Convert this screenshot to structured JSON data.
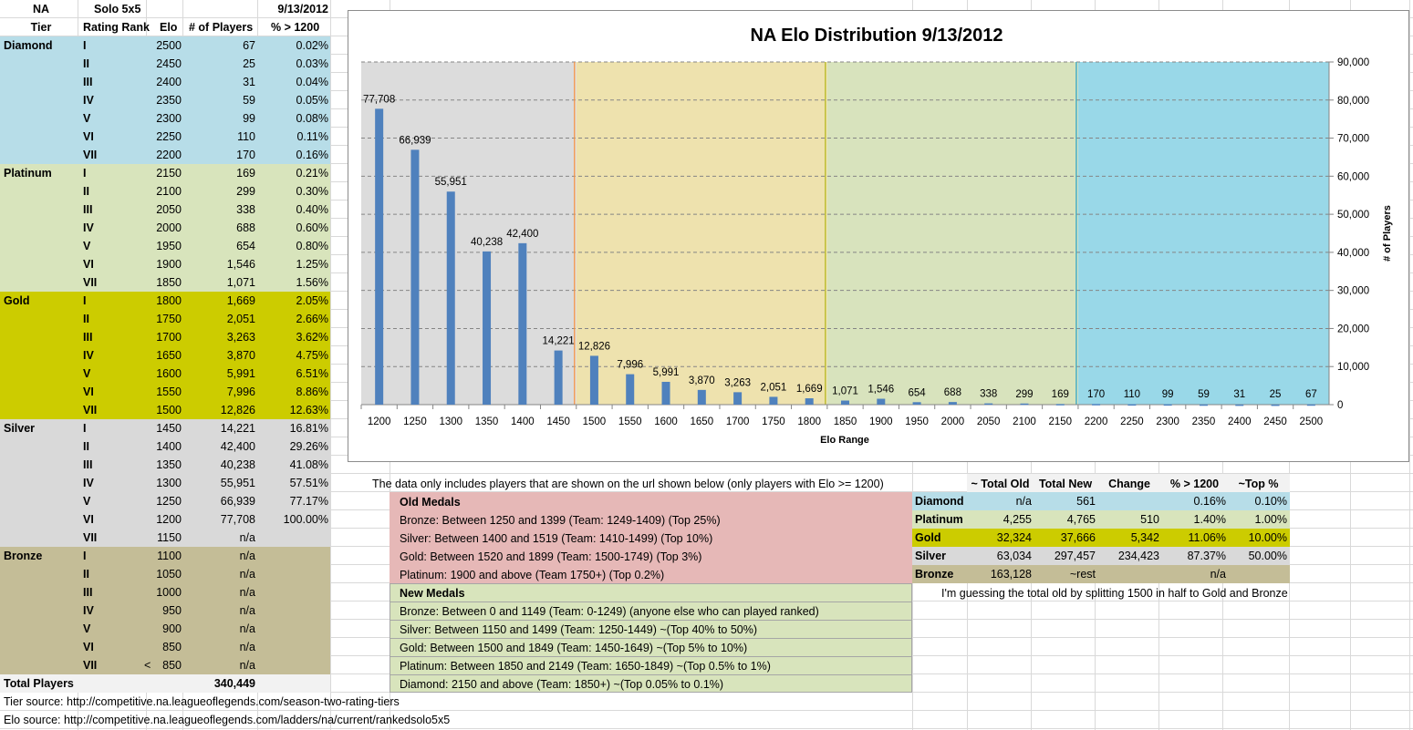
{
  "left_table": {
    "header": {
      "region": "NA",
      "queue": "Solo 5x5",
      "date": "9/13/2012",
      "col_tier": "Tier",
      "col_rank": "Rating Rank",
      "col_elo": "Elo",
      "col_players": "# of Players",
      "col_pct": "% > 1200"
    },
    "tiers": [
      {
        "name": "Diamond",
        "color": "#b7dde8",
        "rows": [
          {
            "rank": "I",
            "elo": "2500",
            "players": "67",
            "pct": "0.02%"
          },
          {
            "rank": "II",
            "elo": "2450",
            "players": "25",
            "pct": "0.03%"
          },
          {
            "rank": "III",
            "elo": "2400",
            "players": "31",
            "pct": "0.04%"
          },
          {
            "rank": "IV",
            "elo": "2350",
            "players": "59",
            "pct": "0.05%"
          },
          {
            "rank": "V",
            "elo": "2300",
            "players": "99",
            "pct": "0.08%"
          },
          {
            "rank": "VI",
            "elo": "2250",
            "players": "110",
            "pct": "0.11%"
          },
          {
            "rank": "VII",
            "elo": "2200",
            "players": "170",
            "pct": "0.16%"
          }
        ]
      },
      {
        "name": "Platinum",
        "color": "#d8e4bc",
        "rows": [
          {
            "rank": "I",
            "elo": "2150",
            "players": "169",
            "pct": "0.21%"
          },
          {
            "rank": "II",
            "elo": "2100",
            "players": "299",
            "pct": "0.30%"
          },
          {
            "rank": "III",
            "elo": "2050",
            "players": "338",
            "pct": "0.40%"
          },
          {
            "rank": "IV",
            "elo": "2000",
            "players": "688",
            "pct": "0.60%"
          },
          {
            "rank": "V",
            "elo": "1950",
            "players": "654",
            "pct": "0.80%"
          },
          {
            "rank": "VI",
            "elo": "1900",
            "players": "1,546",
            "pct": "1.25%"
          },
          {
            "rank": "VII",
            "elo": "1850",
            "players": "1,071",
            "pct": "1.56%"
          }
        ]
      },
      {
        "name": "Gold",
        "color": "#cccc00",
        "rows": [
          {
            "rank": "I",
            "elo": "1800",
            "players": "1,669",
            "pct": "2.05%"
          },
          {
            "rank": "II",
            "elo": "1750",
            "players": "2,051",
            "pct": "2.66%"
          },
          {
            "rank": "III",
            "elo": "1700",
            "players": "3,263",
            "pct": "3.62%"
          },
          {
            "rank": "IV",
            "elo": "1650",
            "players": "3,870",
            "pct": "4.75%"
          },
          {
            "rank": "V",
            "elo": "1600",
            "players": "5,991",
            "pct": "6.51%"
          },
          {
            "rank": "VI",
            "elo": "1550",
            "players": "7,996",
            "pct": "8.86%"
          },
          {
            "rank": "VII",
            "elo": "1500",
            "players": "12,826",
            "pct": "12.63%"
          }
        ]
      },
      {
        "name": "Silver",
        "color": "#d9d9d9",
        "rows": [
          {
            "rank": "I",
            "elo": "1450",
            "players": "14,221",
            "pct": "16.81%"
          },
          {
            "rank": "II",
            "elo": "1400",
            "players": "42,400",
            "pct": "29.26%"
          },
          {
            "rank": "III",
            "elo": "1350",
            "players": "40,238",
            "pct": "41.08%"
          },
          {
            "rank": "IV",
            "elo": "1300",
            "players": "55,951",
            "pct": "57.51%"
          },
          {
            "rank": "V",
            "elo": "1250",
            "players": "66,939",
            "pct": "77.17%"
          },
          {
            "rank": "VI",
            "elo": "1200",
            "players": "77,708",
            "pct": "100.00%"
          },
          {
            "rank": "VII",
            "elo": "1150",
            "players": "n/a",
            "pct": ""
          }
        ]
      },
      {
        "name": "Bronze",
        "color": "#c4bd97",
        "rows": [
          {
            "rank": "I",
            "elo": "1100",
            "players": "n/a",
            "pct": ""
          },
          {
            "rank": "II",
            "elo": "1050",
            "players": "n/a",
            "pct": ""
          },
          {
            "rank": "III",
            "elo": "1000",
            "players": "n/a",
            "pct": ""
          },
          {
            "rank": "IV",
            "elo": "950",
            "players": "n/a",
            "pct": ""
          },
          {
            "rank": "V",
            "elo": "900",
            "players": "n/a",
            "pct": ""
          },
          {
            "rank": "VI",
            "elo": "850",
            "players": "n/a",
            "pct": ""
          },
          {
            "rank": "VII",
            "prefix": "<",
            "elo": "850",
            "players": "n/a",
            "pct": ""
          }
        ]
      }
    ],
    "total_label": "Total Players",
    "total_value": "340,449",
    "tier_source": "Tier source: http://competitive.na.leagueoflegends.com/season-two-rating-tiers",
    "elo_source": "Elo source: http://competitive.na.leagueoflegends.com/ladders/na/current/rankedsolo5x5"
  },
  "note": "The data only includes players that are shown on the url shown below (only players with Elo >= 1200)",
  "old_medals": {
    "title": "Old Medals",
    "color": "#e6b8b7",
    "lines": [
      "Bronze: Between 1250 and 1399 (Team: 1249-1409) (Top 25%)",
      "Silver: Between 1400 and 1519 (Team: 1410-1499) (Top 10%)",
      "Gold: Between 1520 and 1899 (Team: 1500-1749) (Top 3%)",
      "Platinum: 1900 and above (Team 1750+) (Top 0.2%)"
    ]
  },
  "new_medals": {
    "title": "New Medals",
    "color": "#d8e4bc",
    "lines": [
      "Bronze: Between 0 and 1149 (Team: 0-1249) (anyone else who can played ranked)",
      "Silver: Between 1150 and 1499 (Team: 1250-1449) ~(Top 40% to 50%)",
      "Gold: Between 1500 and 1849 (Team: 1450-1649) ~(Top 5% to 10%)",
      "Platinum: Between 1850 and 2149 (Team: 1650-1849) ~(Top 0.5% to 1%)",
      "Diamond: 2150 and above (Team: 1850+) ~(Top 0.05% to 0.1%)"
    ]
  },
  "summary": {
    "headers": [
      "~ Total Old",
      "Total New",
      "Change",
      "% > 1200",
      "~Top %"
    ],
    "rows": [
      {
        "tier": "Diamond",
        "color": "#b7dde8",
        "cells": [
          "n/a",
          "561",
          "",
          "0.16%",
          "0.10%"
        ]
      },
      {
        "tier": "Platinum",
        "color": "#d8e4bc",
        "cells": [
          "4,255",
          "4,765",
          "510",
          "1.40%",
          "1.00%"
        ]
      },
      {
        "tier": "Gold",
        "color": "#cccc00",
        "cells": [
          "32,324",
          "37,666",
          "5,342",
          "11.06%",
          "10.00%"
        ]
      },
      {
        "tier": "Silver",
        "color": "#d9d9d9",
        "cells": [
          "63,034",
          "297,457",
          "234,423",
          "87.37%",
          "50.00%"
        ]
      },
      {
        "tier": "Bronze",
        "color": "#c4bd97",
        "cells": [
          "163,128",
          "~rest",
          "",
          "n/a",
          ""
        ]
      }
    ],
    "footnote": "I'm guessing the total old by splitting 1500 in half to Gold and Bronze"
  },
  "chart_data": {
    "type": "bar",
    "title": "NA Elo Distribution 9/13/2012",
    "xlabel": "Elo Range",
    "ylabel": "# of Players",
    "ylim": [
      0,
      90000
    ],
    "yticks": [
      "0",
      "10,000",
      "20,000",
      "30,000",
      "40,000",
      "50,000",
      "60,000",
      "70,000",
      "80,000",
      "90,000"
    ],
    "categories": [
      "1200",
      "1250",
      "1300",
      "1350",
      "1400",
      "1450",
      "1500",
      "1550",
      "1600",
      "1650",
      "1700",
      "1750",
      "1800",
      "1850",
      "1900",
      "1950",
      "2000",
      "2050",
      "2100",
      "2150",
      "2200",
      "2250",
      "2300",
      "2350",
      "2400",
      "2450",
      "2500"
    ],
    "values": [
      77708,
      66939,
      55951,
      40238,
      42400,
      14221,
      12826,
      7996,
      5991,
      3870,
      3263,
      2051,
      1669,
      1071,
      1546,
      654,
      688,
      338,
      299,
      169,
      170,
      110,
      99,
      59,
      31,
      25,
      67
    ],
    "labels": [
      "77,708",
      "66,939",
      "55,951",
      "40,238",
      "42,400",
      "14,221",
      "12,826",
      "7,996",
      "5,991",
      "3,870",
      "3,263",
      "2,051",
      "1,669",
      "1,071",
      "1,546",
      "654",
      "688",
      "338",
      "299",
      "169",
      "170",
      "110",
      "99",
      "59",
      "31",
      "25",
      "67"
    ],
    "bar_color": "#4f81bd",
    "grid": true,
    "bands": [
      {
        "name": "Silver",
        "start": "1200",
        "end": "1450",
        "color": "#dcdcdc",
        "line": "#f79646"
      },
      {
        "name": "Gold",
        "start": "1500",
        "end": "1800",
        "color": "#eee2ae",
        "line": "#b5b820"
      },
      {
        "name": "Platinum",
        "start": "1850",
        "end": "2150",
        "color": "#d8e3bd",
        "line": "#31a5c8"
      },
      {
        "name": "Diamond",
        "start": "2200",
        "end": "2500",
        "color": "#99d8e8",
        "line": ""
      }
    ]
  }
}
